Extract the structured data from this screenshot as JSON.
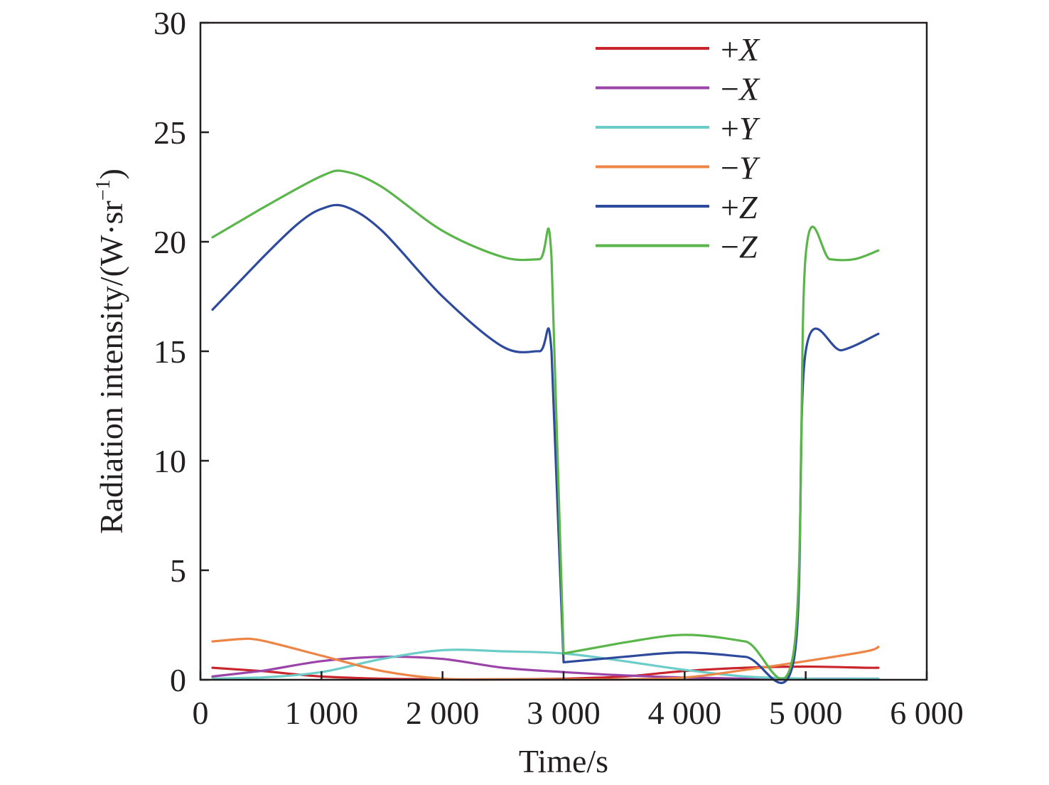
{
  "chart_data": {
    "type": "line",
    "xlabel": "Time/s",
    "ylabel_main": "Radiation intensity/(W·sr",
    "ylabel_sup": "−1",
    "ylabel_end": ")",
    "xlim": [
      0,
      6000
    ],
    "ylim": [
      0,
      30
    ],
    "xticks": [
      0,
      1000,
      2000,
      3000,
      4000,
      5000,
      6000
    ],
    "xtick_labels": [
      "0",
      "1 000",
      "2 000",
      "3 000",
      "4 000",
      "5 000",
      "6 000"
    ],
    "yticks": [
      0,
      5,
      10,
      15,
      20,
      25,
      30
    ],
    "ytick_labels": [
      "0",
      "5",
      "10",
      "15",
      "20",
      "25",
      "30"
    ],
    "grid": false,
    "legend_position": "top-right",
    "series": [
      {
        "name": "+X",
        "sign": "+",
        "axis": "X",
        "color": "#c8262c",
        "x": [
          100,
          500,
          1000,
          1500,
          2000,
          2500,
          3000,
          3500,
          4000,
          4500,
          5000,
          5500,
          5600
        ],
        "y": [
          0.55,
          0.4,
          0.15,
          0.05,
          0.02,
          0.02,
          0.05,
          0.15,
          0.4,
          0.55,
          0.6,
          0.55,
          0.55
        ]
      },
      {
        "name": "−X",
        "sign": "−",
        "axis": "X",
        "color": "#9b44a8",
        "x": [
          100,
          500,
          1000,
          1500,
          2000,
          2500,
          3000,
          3500,
          4000,
          4500,
          5000,
          5600
        ],
        "y": [
          0.15,
          0.4,
          0.85,
          1.05,
          0.95,
          0.55,
          0.35,
          0.2,
          0.1,
          0.05,
          0.05,
          0.05
        ]
      },
      {
        "name": "+Y",
        "sign": "+",
        "axis": "Y",
        "color": "#6ccdc8",
        "x": [
          100,
          500,
          1000,
          1500,
          2000,
          2500,
          3000,
          3500,
          4000,
          4500,
          5000,
          5600
        ],
        "y": [
          0.05,
          0.1,
          0.35,
          0.95,
          1.35,
          1.3,
          1.2,
          0.85,
          0.45,
          0.15,
          0.05,
          0.05
        ]
      },
      {
        "name": "−Y",
        "sign": "−",
        "axis": "Y",
        "color": "#ec8545",
        "x": [
          100,
          300,
          500,
          1000,
          1500,
          2000,
          2500,
          3000,
          3500,
          4000,
          4500,
          5000,
          5500,
          5600
        ],
        "y": [
          1.75,
          1.85,
          1.8,
          1.1,
          0.4,
          0.05,
          0.02,
          0.02,
          0.02,
          0.1,
          0.45,
          0.85,
          1.3,
          1.5
        ]
      },
      {
        "name": "+Z",
        "sign": "+",
        "axis": "Z",
        "color": "#2e4a9c",
        "x": [
          100,
          500,
          800,
          1000,
          1200,
          1500,
          2000,
          2500,
          2800,
          2900,
          3000,
          3500,
          4000,
          4500,
          4900,
          5000,
          5300,
          5600
        ],
        "y": [
          16.9,
          19.2,
          20.8,
          21.5,
          21.6,
          20.5,
          17.5,
          15.2,
          15.0,
          15.0,
          0.8,
          1.05,
          1.25,
          1.05,
          0.85,
          15.0,
          15.05,
          15.8
        ],
        "gap_after_index": 9
      },
      {
        "name": "−Z",
        "sign": "−",
        "axis": "Z",
        "color": "#5ab54a",
        "x": [
          100,
          500,
          1000,
          1200,
          1500,
          2000,
          2500,
          2800,
          2900,
          3000,
          3500,
          4000,
          4500,
          4900,
          5000,
          5200,
          5400,
          5600
        ],
        "y": [
          20.2,
          21.5,
          23.0,
          23.2,
          22.5,
          20.5,
          19.3,
          19.2,
          19.3,
          1.2,
          1.7,
          2.05,
          1.75,
          1.25,
          19.4,
          19.2,
          19.2,
          19.6
        ],
        "gap_after_index": 8
      }
    ]
  }
}
